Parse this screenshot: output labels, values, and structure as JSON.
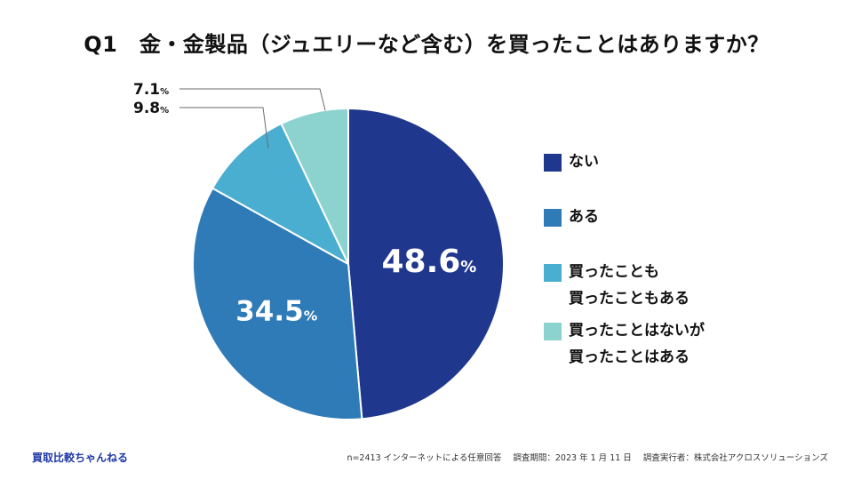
{
  "title": "Q1　金・金製品（ジュエリーなど含む）を買ったことはありますか？",
  "chart_data": {
    "type": "pie",
    "title": "Q1　金・金製品（ジュエリーなど含む）を買ったことはありますか？",
    "unit": "%",
    "start": "12 o'clock, clockwise",
    "slices": [
      {
        "label": "ない",
        "value": 48.6,
        "display": "48.6",
        "color": "#1f378d"
      },
      {
        "label": "ある",
        "value": 34.5,
        "display": "34.5",
        "color": "#2f7bb7"
      },
      {
        "label": "買ったことも\n買ったこともある",
        "value": 9.8,
        "display": "9.8",
        "color": "#4aaed1"
      },
      {
        "label": "買ったことはないが\n買ったことはある",
        "value": 7.1,
        "display": "7.1",
        "color": "#8cd3cf"
      }
    ],
    "legend_position": "right"
  },
  "footer": {
    "brand": "買取比較ちゃんねる",
    "sample": "n=2413 インターネットによる任意回答",
    "period": "調査期間：2023 年 1 月 11 日",
    "operator": "調査実行者：株式会社アクロスソリューションズ"
  }
}
